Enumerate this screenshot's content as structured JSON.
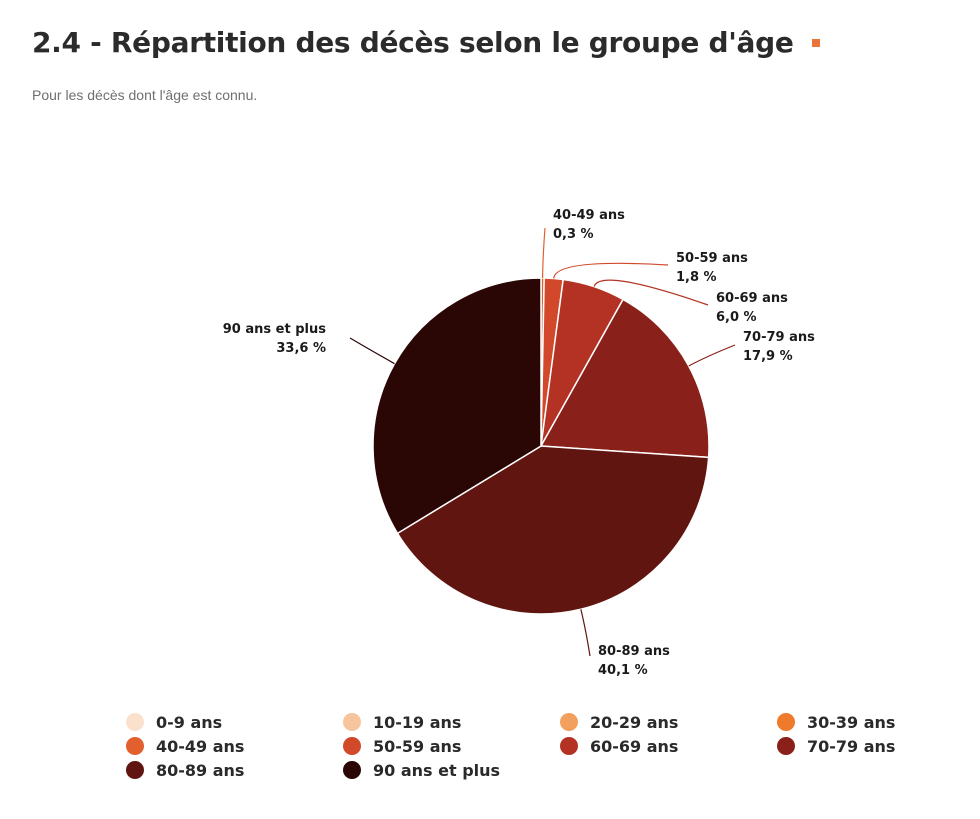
{
  "header": {
    "title": "2.4 - Répartition des décès selon le groupe d'âge",
    "subtitle": "Pour les décès dont l'âge est connu."
  },
  "chart_data": {
    "type": "pie",
    "slices": [
      {
        "name": "0-9 ans",
        "value": 0,
        "color": "#fbe0cc",
        "label": ""
      },
      {
        "name": "10-19 ans",
        "value": 0,
        "color": "#f7c49b",
        "label": ""
      },
      {
        "name": "20-29 ans",
        "value": 0,
        "color": "#f3a05e",
        "label": ""
      },
      {
        "name": "30-39 ans",
        "value": 0,
        "color": "#ef7a2c",
        "label": ""
      },
      {
        "name": "40-49 ans",
        "value": 0.3,
        "color": "#e2602e",
        "label": "0,3 %"
      },
      {
        "name": "50-59 ans",
        "value": 1.8,
        "color": "#d2482a",
        "label": "1,8 %"
      },
      {
        "name": "60-69 ans",
        "value": 6.0,
        "color": "#b33224",
        "label": "6,0 %"
      },
      {
        "name": "70-79 ans",
        "value": 17.9,
        "color": "#8a201a",
        "label": "17,9 %"
      },
      {
        "name": "80-89 ans",
        "value": 40.1,
        "color": "#601510",
        "label": "40,1 %"
      },
      {
        "name": "90 ans et plus",
        "value": 33.6,
        "color": "#2a0604",
        "label": "33,6 %"
      }
    ],
    "legend": {
      "position": "bottom",
      "columns": 4
    }
  }
}
